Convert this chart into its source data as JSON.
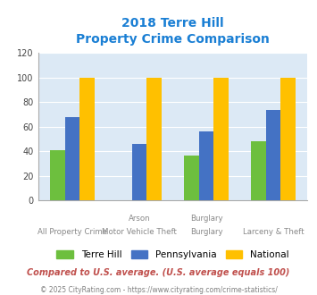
{
  "title_line1": "2018 Terre Hill",
  "title_line2": "Property Crime Comparison",
  "top_labels": [
    "",
    "Arson",
    "Burglary",
    ""
  ],
  "bot_labels": [
    "All Property Crime",
    "Motor Vehicle Theft",
    "Burglary",
    "Larceny & Theft"
  ],
  "terre_hill": [
    41,
    0,
    37,
    48
  ],
  "pennsylvania": [
    68,
    46,
    56,
    74
  ],
  "national": [
    100,
    100,
    100,
    100
  ],
  "colors": {
    "terre_hill": "#6dbf3e",
    "pennsylvania": "#4472c4",
    "national": "#ffc000"
  },
  "ylim": [
    0,
    120
  ],
  "yticks": [
    0,
    20,
    40,
    60,
    80,
    100,
    120
  ],
  "legend_labels": [
    "Terre Hill",
    "Pennsylvania",
    "National"
  ],
  "footnote1": "Compared to U.S. average. (U.S. average equals 100)",
  "footnote2": "© 2025 CityRating.com - https://www.cityrating.com/crime-statistics/",
  "title_color": "#1a7fd4",
  "footnote1_color": "#c0504d",
  "footnote2_color": "#7f7f7f",
  "bg_color": "#dce9f5",
  "bar_width": 0.22
}
